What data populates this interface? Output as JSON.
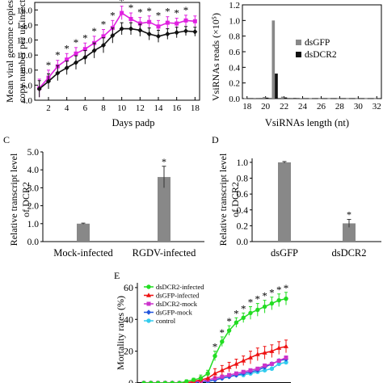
{
  "panels": {
    "A": {
      "ylabel_line1": "Mean viral genome copies (lo",
      "ylabel_line2": "copy number per ug insect RN",
      "xlabel": "Days padp"
    },
    "B": {
      "letter": "",
      "ylabel": "VsiRNAs reads (×10⁵)",
      "xlabel": "VsiRNAs length (nt)"
    },
    "C": {
      "letter": "C",
      "ylabel_line1": "Relative transcript level",
      "ylabel_line2": "of DCR2"
    },
    "D": {
      "letter": "D",
      "ylabel_line1": "Relative transcript level",
      "ylabel_line2": "of DCR2"
    },
    "E": {
      "letter": "E",
      "ylabel": "Mortality rates (%)"
    }
  },
  "colors": {
    "magenta": "#e020e0",
    "black": "#111111",
    "gray": "#888888",
    "green": "#22dd22",
    "red": "#ee1111",
    "purple": "#cc33cc",
    "blue": "#2255dd",
    "cyan": "#33ccee"
  },
  "chart_data": [
    {
      "id": "A",
      "type": "line",
      "x": [
        1,
        2,
        3,
        4,
        5,
        6,
        7,
        8,
        9,
        10,
        11,
        12,
        13,
        14,
        15,
        16,
        17,
        18
      ],
      "xticks": [
        "2",
        "4",
        "6",
        "8",
        "10",
        "12",
        "14",
        "16",
        "18"
      ],
      "yticks": [
        "4.0",
        "6.0",
        "8.0",
        "10.0",
        "12.0",
        "14.0",
        "16.0"
      ],
      "ylim": [
        4,
        17
      ],
      "xlim": [
        0.5,
        18.5
      ],
      "series": [
        {
          "color": "#e020e0",
          "values": [
            5.6,
            7.0,
            8.5,
            9.4,
            10.2,
            10.8,
            11.6,
            12.5,
            13.6,
            15.6,
            14.8,
            14.2,
            14.4,
            13.8,
            14.3,
            14.2,
            14.6,
            14.5
          ],
          "err": [
            1.2,
            1.0,
            0.8,
            0.8,
            0.8,
            0.8,
            0.9,
            0.9,
            1.0,
            0.9,
            0.8,
            0.8,
            0.8,
            0.8,
            0.8,
            0.7,
            0.7,
            0.7
          ]
        },
        {
          "color": "#111111",
          "values": [
            5.5,
            6.5,
            7.6,
            8.3,
            9.0,
            9.7,
            10.6,
            11.3,
            12.6,
            13.5,
            13.5,
            13.3,
            12.8,
            12.5,
            12.8,
            13.0,
            13.2,
            13.1
          ],
          "err": [
            1.1,
            1.0,
            1.0,
            0.9,
            0.9,
            0.9,
            1.0,
            1.0,
            1.0,
            0.8,
            0.8,
            0.8,
            0.8,
            0.8,
            0.7,
            0.7,
            0.6,
            0.6
          ]
        }
      ],
      "stars_x": [
        2,
        3,
        4,
        5,
        6,
        7,
        8,
        9,
        10,
        11,
        12,
        13,
        14,
        15,
        16,
        17
      ]
    },
    {
      "id": "B",
      "type": "bar",
      "categories": [
        "18",
        "19",
        "20",
        "21",
        "22",
        "23",
        "24",
        "25",
        "26",
        "27",
        "28",
        "29",
        "30",
        "31",
        "32"
      ],
      "xticks": [
        "18",
        "20",
        "22",
        "24",
        "26",
        "28",
        "30",
        "32"
      ],
      "yticks": [
        "0.0",
        "0.2",
        "0.4",
        "0.6",
        "0.8",
        "1.0",
        "1.2"
      ],
      "ylim": [
        0,
        1.2
      ],
      "series": [
        {
          "name": "dsGFP",
          "color": "#888888",
          "values": [
            0.004,
            0.008,
            0.02,
            1.0,
            0.025,
            0.01,
            0.006,
            0.004,
            0.003,
            0.003,
            0.003,
            0.003,
            0.003,
            0.003,
            0.003
          ]
        },
        {
          "name": "dsDCR2",
          "color": "#111111",
          "values": [
            0.003,
            0.005,
            0.012,
            0.32,
            0.015,
            0.007,
            0.004,
            0.003,
            0.002,
            0.002,
            0.002,
            0.002,
            0.002,
            0.002,
            0.002
          ]
        }
      ]
    },
    {
      "id": "C",
      "type": "bar",
      "categories": [
        "Mock-infected",
        "RGDV-infected"
      ],
      "values": [
        1.0,
        3.6
      ],
      "err": [
        0.03,
        0.6
      ],
      "yticks": [
        "0.0",
        "1.0",
        "2.0",
        "3.0",
        "4.0",
        "5.0"
      ],
      "ylim": [
        0,
        5
      ],
      "star": "*"
    },
    {
      "id": "D",
      "type": "bar",
      "categories": [
        "dsGFP",
        "dsDCR2"
      ],
      "values": [
        1.0,
        0.23
      ],
      "err": [
        0.01,
        0.05
      ],
      "yticks": [
        "0.0",
        "0.2",
        "0.4",
        "0.6",
        "0.8",
        "1.0"
      ],
      "ylim": [
        0,
        1.05
      ],
      "star": "*"
    },
    {
      "id": "E",
      "type": "line",
      "x": [
        1,
        2,
        3,
        4,
        5,
        6,
        7,
        8,
        9,
        10,
        11,
        12,
        13,
        14,
        15,
        16,
        17,
        18,
        19,
        20,
        21
      ],
      "yticks": [
        "0",
        "20",
        "40",
        "60"
      ],
      "ylim": [
        0,
        63
      ],
      "series": [
        {
          "name": "dsDCR2-infected",
          "color": "#22dd22",
          "values": [
            0,
            0,
            0,
            0,
            0,
            0,
            1,
            2,
            3,
            6,
            17,
            26,
            33,
            38,
            41,
            44,
            46,
            48,
            50,
            52,
            53
          ]
        },
        {
          "name": "dsGFP-infected",
          "color": "#ee1111",
          "values": [
            0,
            0,
            0,
            0,
            0,
            0,
            0,
            1,
            2,
            3,
            6,
            8,
            10,
            12,
            14,
            16,
            18,
            19,
            20,
            22,
            23
          ]
        },
        {
          "name": "dsDCR2-mock",
          "color": "#cc33cc",
          "values": [
            0,
            0,
            0,
            0,
            0,
            0,
            0,
            1,
            1,
            2,
            3,
            4,
            5,
            6,
            7,
            8,
            9,
            11,
            12,
            14,
            16
          ]
        },
        {
          "name": "dsGFP-mock",
          "color": "#2255dd",
          "values": [
            0,
            0,
            0,
            0,
            0,
            0,
            0,
            0,
            1,
            1,
            2,
            3,
            4,
            5,
            6,
            7,
            8,
            10,
            12,
            14,
            15
          ]
        },
        {
          "name": "control",
          "color": "#33ccee",
          "values": [
            0,
            0,
            0,
            0,
            0,
            0,
            0,
            0,
            1,
            1,
            2,
            3,
            4,
            5,
            5,
            6,
            7,
            8,
            9,
            12,
            13
          ]
        }
      ],
      "err": [
        0,
        0,
        0,
        0,
        0,
        0,
        1,
        1,
        2,
        2,
        3,
        3,
        3,
        3,
        3,
        4,
        4,
        4,
        4,
        4,
        4
      ],
      "stars_x": [
        11,
        12,
        13,
        14,
        15,
        16,
        17,
        18,
        19,
        20,
        21
      ]
    }
  ]
}
